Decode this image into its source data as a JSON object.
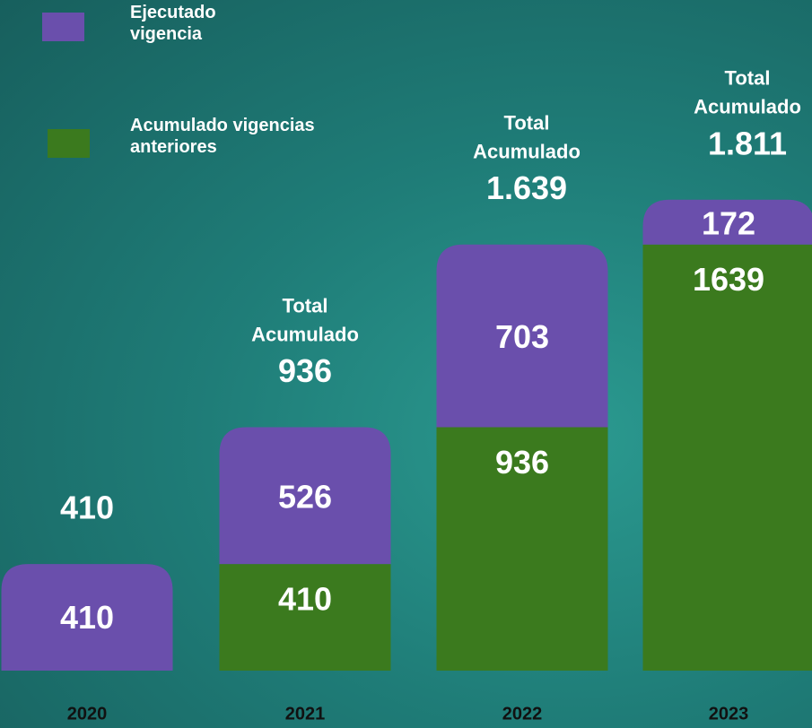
{
  "chart_data": {
    "type": "stacked-bar",
    "categories": [
      "2020",
      "2021",
      "2022",
      "2023"
    ],
    "series": [
      {
        "name": "Acumulado vigencias anteriores",
        "color": "#3b7a1e",
        "values": [
          null,
          410,
          936,
          1639
        ]
      },
      {
        "name": "Ejecutado vigencia",
        "color": "#6a4fac",
        "values": [
          410,
          526,
          703,
          172
        ]
      }
    ],
    "total_caption": [
      "Total",
      "Acumulado"
    ],
    "totals": [
      {
        "value": 410,
        "label": "410"
      },
      {
        "value": 936,
        "label": "936"
      },
      {
        "value": 1639,
        "label": "1.639"
      },
      {
        "value": 1811,
        "label": "1.811"
      }
    ],
    "ylim": [
      0,
      2500
    ]
  }
}
